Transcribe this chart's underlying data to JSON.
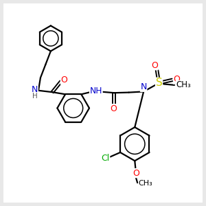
{
  "bg_color": "#e8e8e8",
  "white": "#ffffff",
  "bond_color": "#000000",
  "bond_width": 1.6,
  "atom_colors": {
    "N": "#0000cc",
    "O": "#ff0000",
    "S": "#cccc00",
    "Cl": "#00aa00",
    "C": "#000000",
    "H": "#555555"
  },
  "font_size": 8.5,
  "fig_size": [
    3.0,
    3.0
  ],
  "dpi": 100,
  "xlim": [
    0,
    10
  ],
  "ylim": [
    0,
    10
  ]
}
